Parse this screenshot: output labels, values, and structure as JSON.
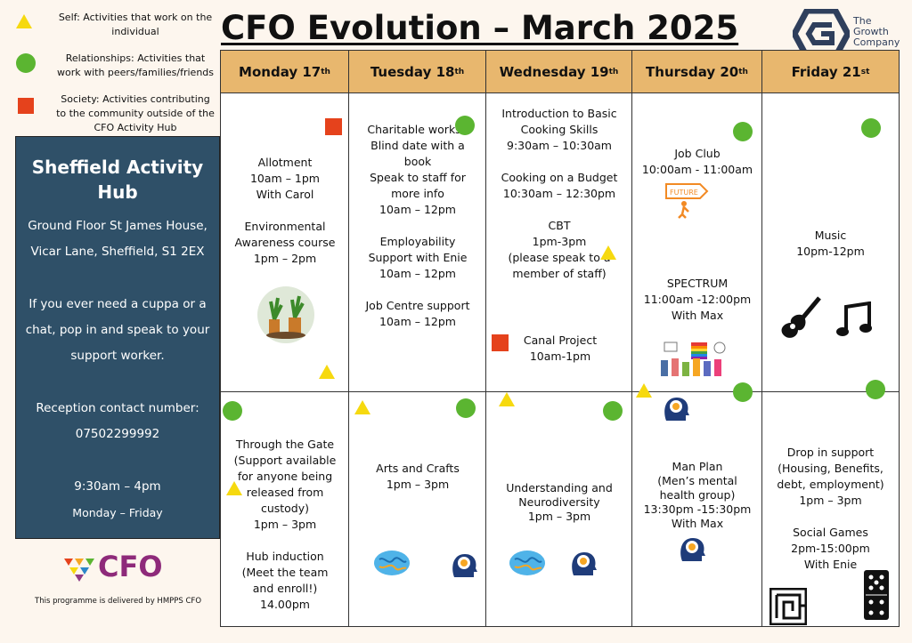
{
  "legend": [
    {
      "shape": "triangle",
      "color": "#f6d90f",
      "text": "Self: Activities that work on the individual"
    },
    {
      "shape": "circle",
      "color": "#5bb531",
      "text": "Relationships: Activities that work with peers/families/friends"
    },
    {
      "shape": "square",
      "color": "#e5421c",
      "text": "Society: Activities contributing to the community outside of the CFO Activity Hub"
    }
  ],
  "title": "CFO Evolution – March 2025",
  "logo": {
    "line1": "The",
    "line2": "Growth",
    "line3": "Company"
  },
  "panel": {
    "heading": "Sheffield Activity Hub",
    "address1": "Ground Floor St James House,",
    "address2": "Vicar Lane, Sheffield, S1 2EX",
    "cuppa1": "If you ever need a cuppa or a",
    "cuppa2": "chat, pop in and speak to your",
    "cuppa3": "support worker.",
    "reception_label": "Reception contact number:",
    "reception_number": "07502299992",
    "hours": "9:30am – 4pm",
    "days": "Monday – Friday"
  },
  "cfo_logo": "CFO",
  "footer": "This programme is delivered by HMPPS CFO",
  "days": [
    {
      "name": "Monday 17",
      "suffix": "th"
    },
    {
      "name": "Tuesday 18",
      "suffix": "th"
    },
    {
      "name": "Wednesday 19",
      "suffix": "th"
    },
    {
      "name": "Thursday 20",
      "suffix": "th"
    },
    {
      "name": "Friday 21",
      "suffix": "st"
    }
  ],
  "am": {
    "mon": "Allotment\n10am – 1pm\nWith Carol\n\nEnvironmental\nAwareness course\n1pm – 2pm",
    "tue": "Charitable worksh\nBlind date with a\nbook\nSpeak to staff for\nmore info\n10am – 12pm\n\nEmployability\nSupport with Enie\n10am – 12pm\n\nJob Centre support\n10am – 12pm",
    "wed1": "Introduction to Basic\nCooking Skills\n9:30am – 10:30am\n\nCooking on a Budget\n10:30am – 12:30pm\n\nCBT\n1pm-3pm\n(please speak to a\nmember of staff)",
    "wed2": "Canal Project\n10am-1pm",
    "thu1": "Job Club\n10:00am - 11:00am",
    "thu2": "SPECTRUM\n11:00am -12:00pm\nWith  Max",
    "fri": "Music\n10pm-12pm"
  },
  "pm": {
    "mon": "Through the Gate\n(Support available\nfor anyone being\nreleased from\ncustody)\n1pm – 3pm\n\nHub induction\n(Meet the team\nand enroll!)\n14.00pm",
    "tue": "Arts and Crafts\n1pm  – 3pm",
    "wed": "Understanding and\nNeurodiversity\n1pm – 3pm",
    "thu": "Man Plan\n(Men’s mental\nhealth group)\n13:30pm -15:30pm\nWith Max",
    "fri": "Drop in support\n(Housing, Benefits,\ndebt, employment)\n1pm – 3pm\n\nSocial Games\n2pm-15:00pm\nWith Enie"
  },
  "future_sign": "FUTURE",
  "colors": {
    "header": "#e8b76e",
    "panel": "#2f5068",
    "triangle": "#f6d90f",
    "circle": "#5bb531",
    "square": "#e5421c"
  }
}
